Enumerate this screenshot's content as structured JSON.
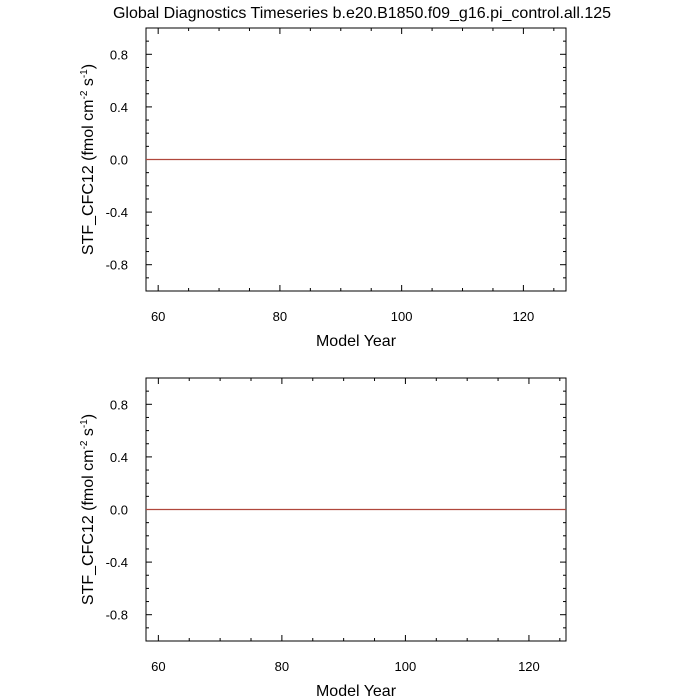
{
  "title": "Global Diagnostics Timeseries b.e20.B1850.f09_g16.pi_control.all.125",
  "chart_data": [
    {
      "type": "line",
      "xlabel": "Model Year",
      "ylabel_main": "STF_CFC12 (fmol cm",
      "ylabel_exp1": "-2",
      "ylabel_mid": " s",
      "ylabel_exp2": "-1",
      "ylabel_end": ")",
      "xlim": [
        58,
        127
      ],
      "ylim": [
        -1,
        1
      ],
      "xticks": [
        60,
        80,
        100,
        120
      ],
      "yticks": [
        -0.8,
        -0.4,
        0.0,
        0.4,
        0.8
      ],
      "xtick_labels": [
        "60",
        "80",
        "100",
        "120"
      ],
      "ytick_labels": [
        "-0.8",
        "-0.4",
        "0.0",
        "0.4",
        "0.8"
      ],
      "series": [
        {
          "x": [
            58,
            126
          ],
          "y": [
            0,
            0
          ],
          "color": "#b0473c"
        }
      ]
    },
    {
      "type": "line",
      "xlabel": "Model Year",
      "ylabel_main": "STF_CFC12 (fmol cm",
      "ylabel_exp1": "-2",
      "ylabel_mid": " s",
      "ylabel_exp2": "-1",
      "ylabel_end": ")",
      "xlim": [
        58,
        126
      ],
      "ylim": [
        -1,
        1
      ],
      "xticks": [
        60,
        80,
        100,
        120
      ],
      "yticks": [
        -0.8,
        -0.4,
        0.0,
        0.4,
        0.8
      ],
      "xtick_labels": [
        "60",
        "80",
        "100",
        "120"
      ],
      "ytick_labels": [
        "-0.8",
        "-0.4",
        "0.0",
        "0.4",
        "0.8"
      ],
      "series": [
        {
          "x": [
            58,
            126
          ],
          "y": [
            0,
            0
          ],
          "color": "#b0473c"
        }
      ]
    }
  ]
}
